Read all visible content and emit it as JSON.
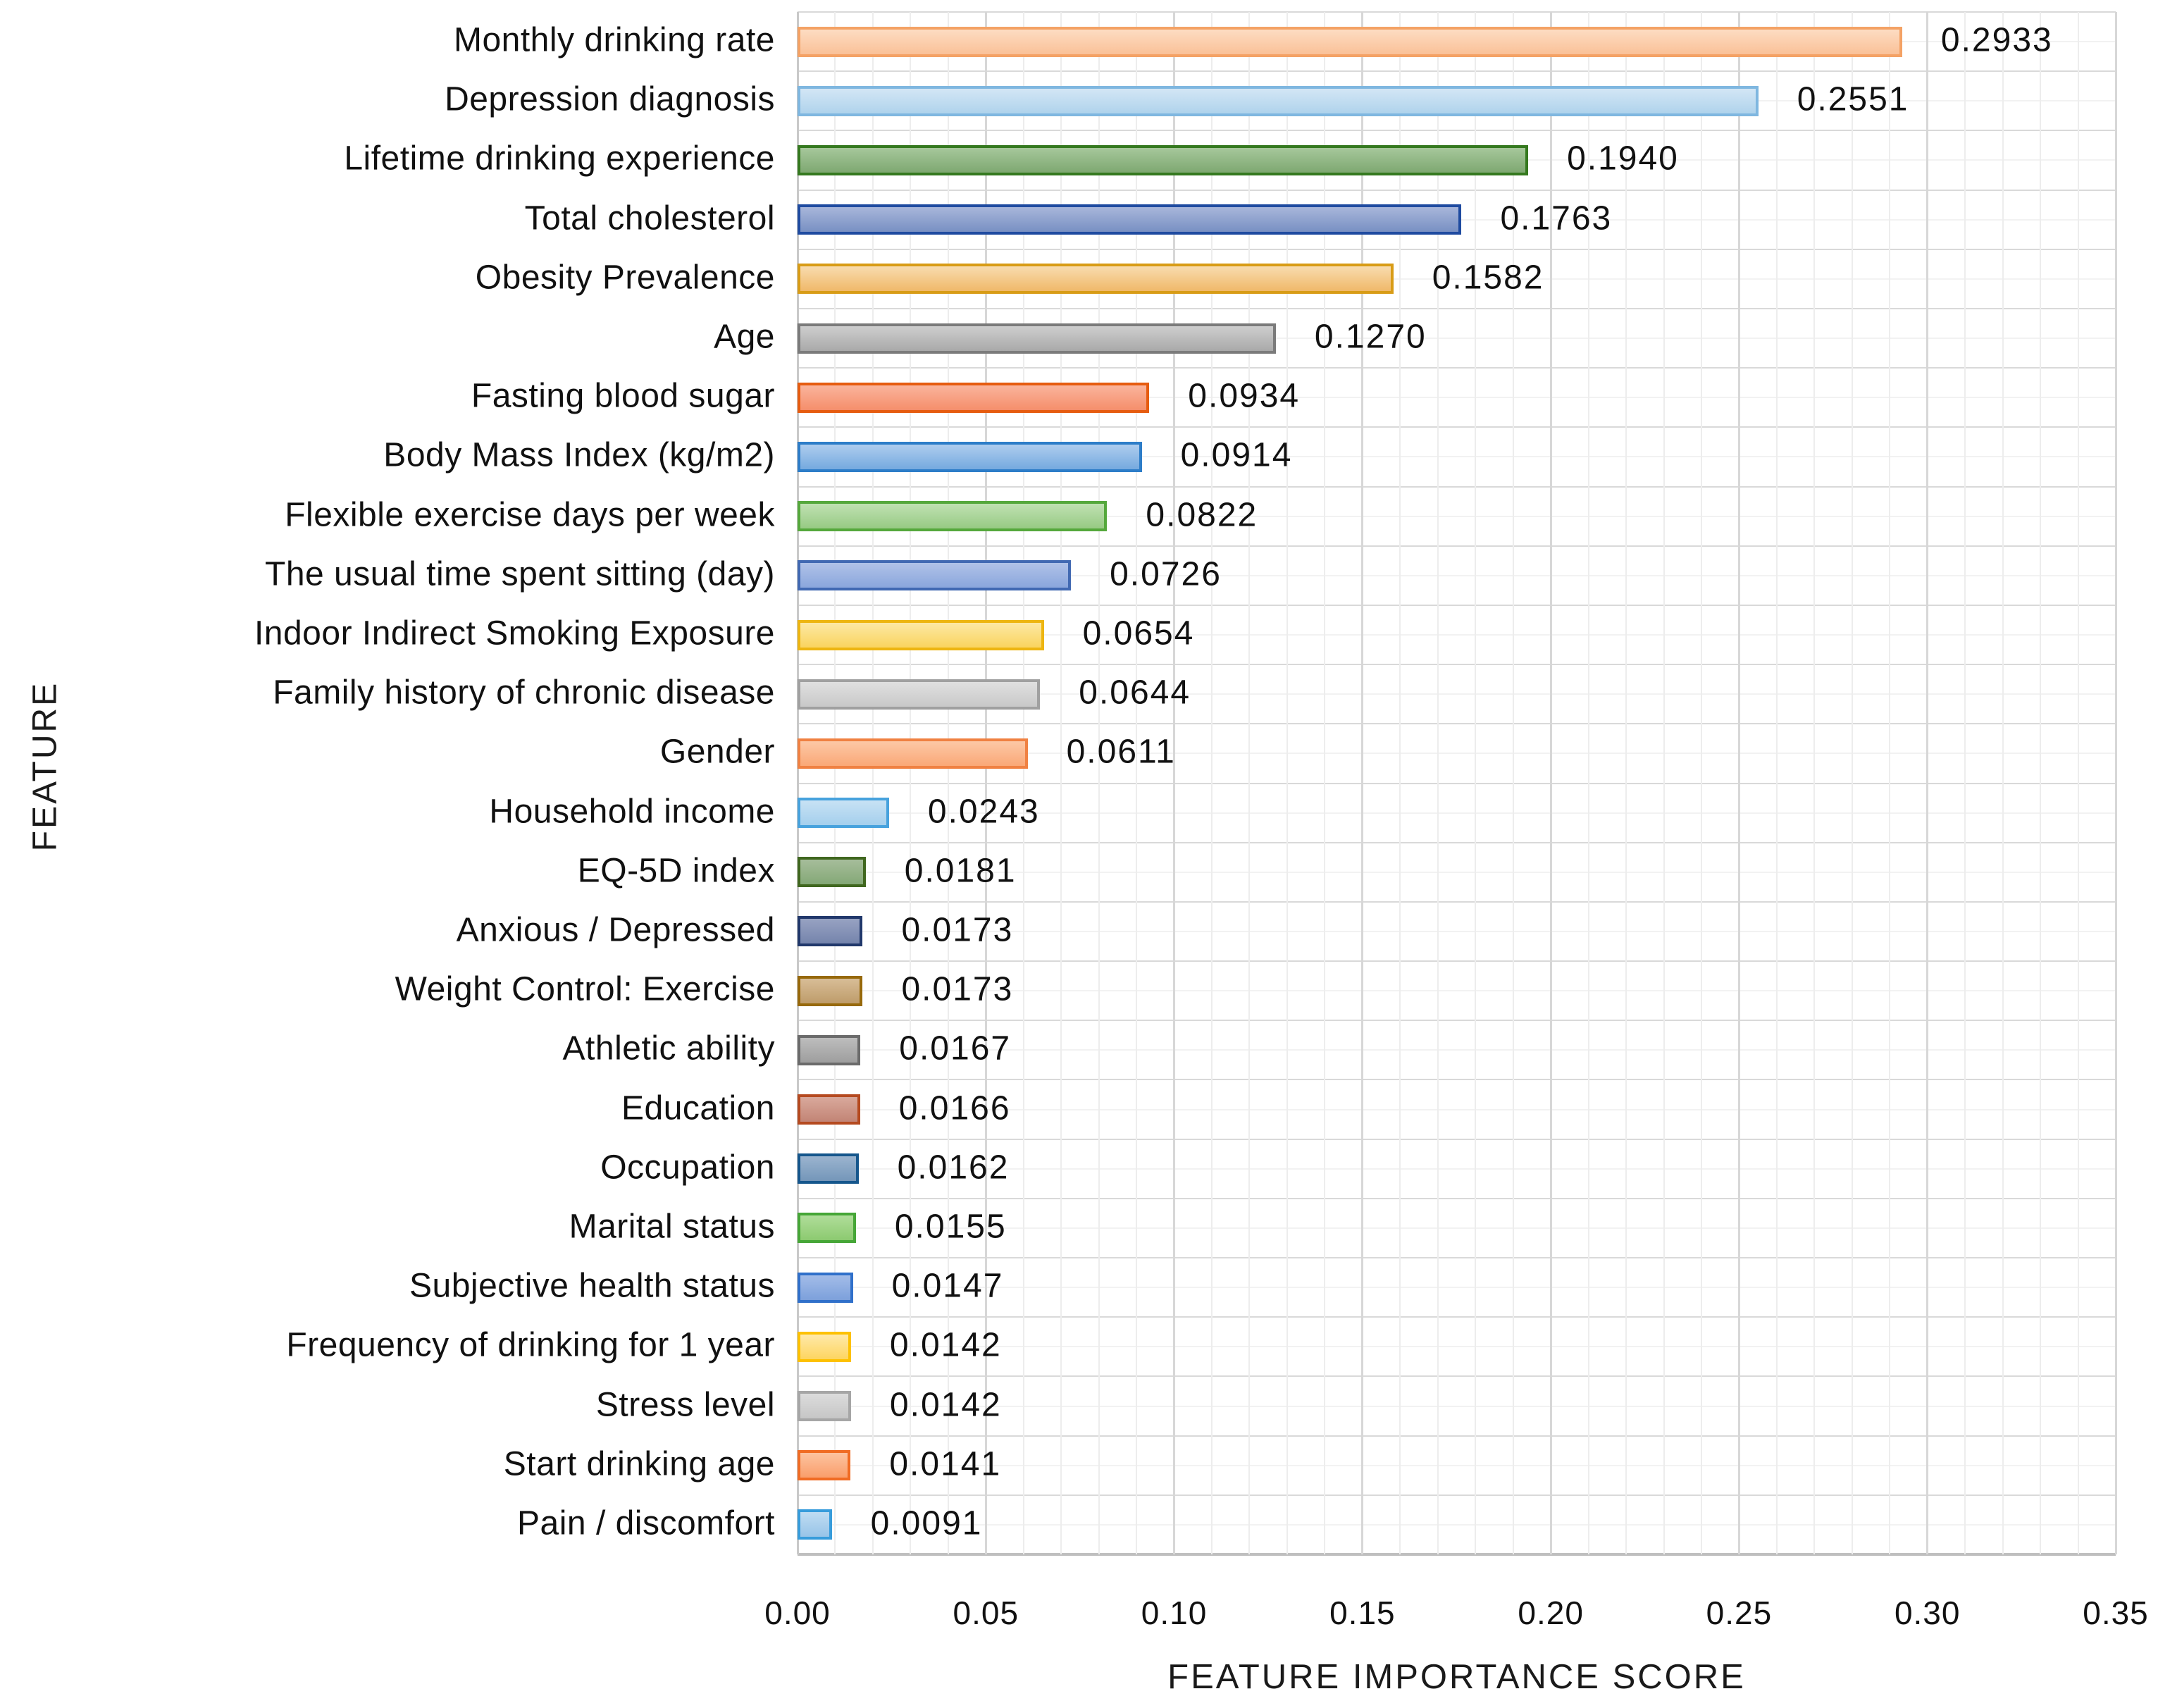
{
  "chart_data": {
    "type": "bar",
    "orientation": "horizontal",
    "title": "",
    "xlabel": "FEATURE IMPORTANCE SCORE",
    "ylabel": "FEATURE",
    "xlim": [
      0.0,
      0.35
    ],
    "x_tick_step": 0.05,
    "x_ticks": [
      "0.00",
      "0.05",
      "0.10",
      "0.15",
      "0.20",
      "0.25",
      "0.30",
      "0.35"
    ],
    "grid": {
      "vertical_minor_step": 0.01,
      "vertical_major_step": 0.05,
      "horizontal": "category boundaries and band centers",
      "minor_color": "#ededed",
      "major_color": "#d7d7d7",
      "axis_line_color": "#bfbfbf"
    },
    "legend": "none",
    "categories": [
      "Monthly drinking rate",
      "Depression diagnosis",
      "Lifetime drinking experience",
      "Total cholesterol",
      "Obesity Prevalence",
      "Age",
      "Fasting blood sugar",
      "Body Mass Index (kg/m2)",
      "Flexible exercise days per week",
      "The usual time spent sitting (day)",
      "Indoor Indirect Smoking Exposure",
      "Family history of chronic disease",
      "Gender",
      "Household income",
      "EQ-5D index",
      "Anxious / Depressed",
      "Weight Control: Exercise",
      "Athletic ability",
      "Education",
      "Occupation",
      "Marital status",
      "Subjective health status",
      "Frequency of drinking for 1 year",
      "Stress level",
      "Start drinking age",
      "Pain / discomfort"
    ],
    "values": [
      0.2933,
      0.2551,
      0.194,
      0.1763,
      0.1582,
      0.127,
      0.0934,
      0.0914,
      0.0822,
      0.0726,
      0.0654,
      0.0644,
      0.0611,
      0.0243,
      0.0181,
      0.0173,
      0.0173,
      0.0167,
      0.0166,
      0.0162,
      0.0155,
      0.0147,
      0.0142,
      0.0142,
      0.0141,
      0.0091
    ],
    "value_labels": [
      "0.2933",
      "0.2551",
      "0.1940",
      "0.1763",
      "0.1582",
      "0.1270",
      "0.0934",
      "0.0914",
      "0.0822",
      "0.0726",
      "0.0654",
      "0.0644",
      "0.0611",
      "0.0243",
      "0.0181",
      "0.0173",
      "0.0173",
      "0.0167",
      "0.0166",
      "0.0162",
      "0.0155",
      "0.0147",
      "0.0142",
      "0.0142",
      "0.0141",
      "0.0091"
    ],
    "bar_styles": [
      {
        "fill_top": "#fddcc2",
        "fill_bottom": "#fac198",
        "border": "#f4a265"
      },
      {
        "fill_top": "#d3e6f5",
        "fill_bottom": "#afd3ec",
        "border": "#7fb7e0"
      },
      {
        "fill_top": "#a6c79b",
        "fill_bottom": "#7ea871",
        "border": "#35791f"
      },
      {
        "fill_top": "#a8b6da",
        "fill_bottom": "#7890c3",
        "border": "#1f4ba0"
      },
      {
        "fill_top": "#f8dcae",
        "fill_bottom": "#f0b96a",
        "border": "#d89c16"
      },
      {
        "fill_top": "#cecece",
        "fill_bottom": "#a9a9a9",
        "border": "#7b7b7b"
      },
      {
        "fill_top": "#fab49c",
        "fill_bottom": "#f58e6b",
        "border": "#e65c10"
      },
      {
        "fill_top": "#aecdee",
        "fill_bottom": "#75aadf",
        "border": "#2d7dc8"
      },
      {
        "fill_top": "#c0e1b2",
        "fill_bottom": "#97ca84",
        "border": "#55a83c"
      },
      {
        "fill_top": "#b0c2e8",
        "fill_bottom": "#8aa6dc",
        "border": "#4169b2"
      },
      {
        "fill_top": "#fce8a4",
        "fill_bottom": "#fad45e",
        "border": "#edb511"
      },
      {
        "fill_top": "#e0e0e0",
        "fill_bottom": "#c8c8c8",
        "border": "#a0a0a0"
      },
      {
        "fill_top": "#fcc8a6",
        "fill_bottom": "#faa877",
        "border": "#f08142"
      },
      {
        "fill_top": "#c8e2f4",
        "fill_bottom": "#a4cfed",
        "border": "#47a2dd"
      },
      {
        "fill_top": "#a6bd9b",
        "fill_bottom": "#84a876",
        "border": "#40671f"
      },
      {
        "fill_top": "#97a2c2",
        "fill_bottom": "#7584ac",
        "border": "#21386b"
      },
      {
        "fill_top": "#d8bd97",
        "fill_bottom": "#be9c6a",
        "border": "#97690b"
      },
      {
        "fill_top": "#bdbdbd",
        "fill_bottom": "#9e9e9e",
        "border": "#6b6b6b"
      },
      {
        "fill_top": "#d9a99c",
        "fill_bottom": "#c28475",
        "border": "#b54a20"
      },
      {
        "fill_top": "#9bb4cf",
        "fill_bottom": "#7496b9",
        "border": "#15568c"
      },
      {
        "fill_top": "#b0dd9a",
        "fill_bottom": "#8cca70",
        "border": "#46a637"
      },
      {
        "fill_top": "#a3bce8",
        "fill_bottom": "#7ca0db",
        "border": "#3070ca"
      },
      {
        "fill_top": "#ffe9a9",
        "fill_bottom": "#fdd560",
        "border": "#fdc101"
      },
      {
        "fill_top": "#dcdcdc",
        "fill_bottom": "#c6c6c6",
        "border": "#a6a6a6"
      },
      {
        "fill_top": "#fcc3a0",
        "fill_bottom": "#fa9e6b",
        "border": "#f06c24"
      },
      {
        "fill_top": "#bfdcf2",
        "fill_bottom": "#97c4e8",
        "border": "#379cdb"
      }
    ]
  }
}
